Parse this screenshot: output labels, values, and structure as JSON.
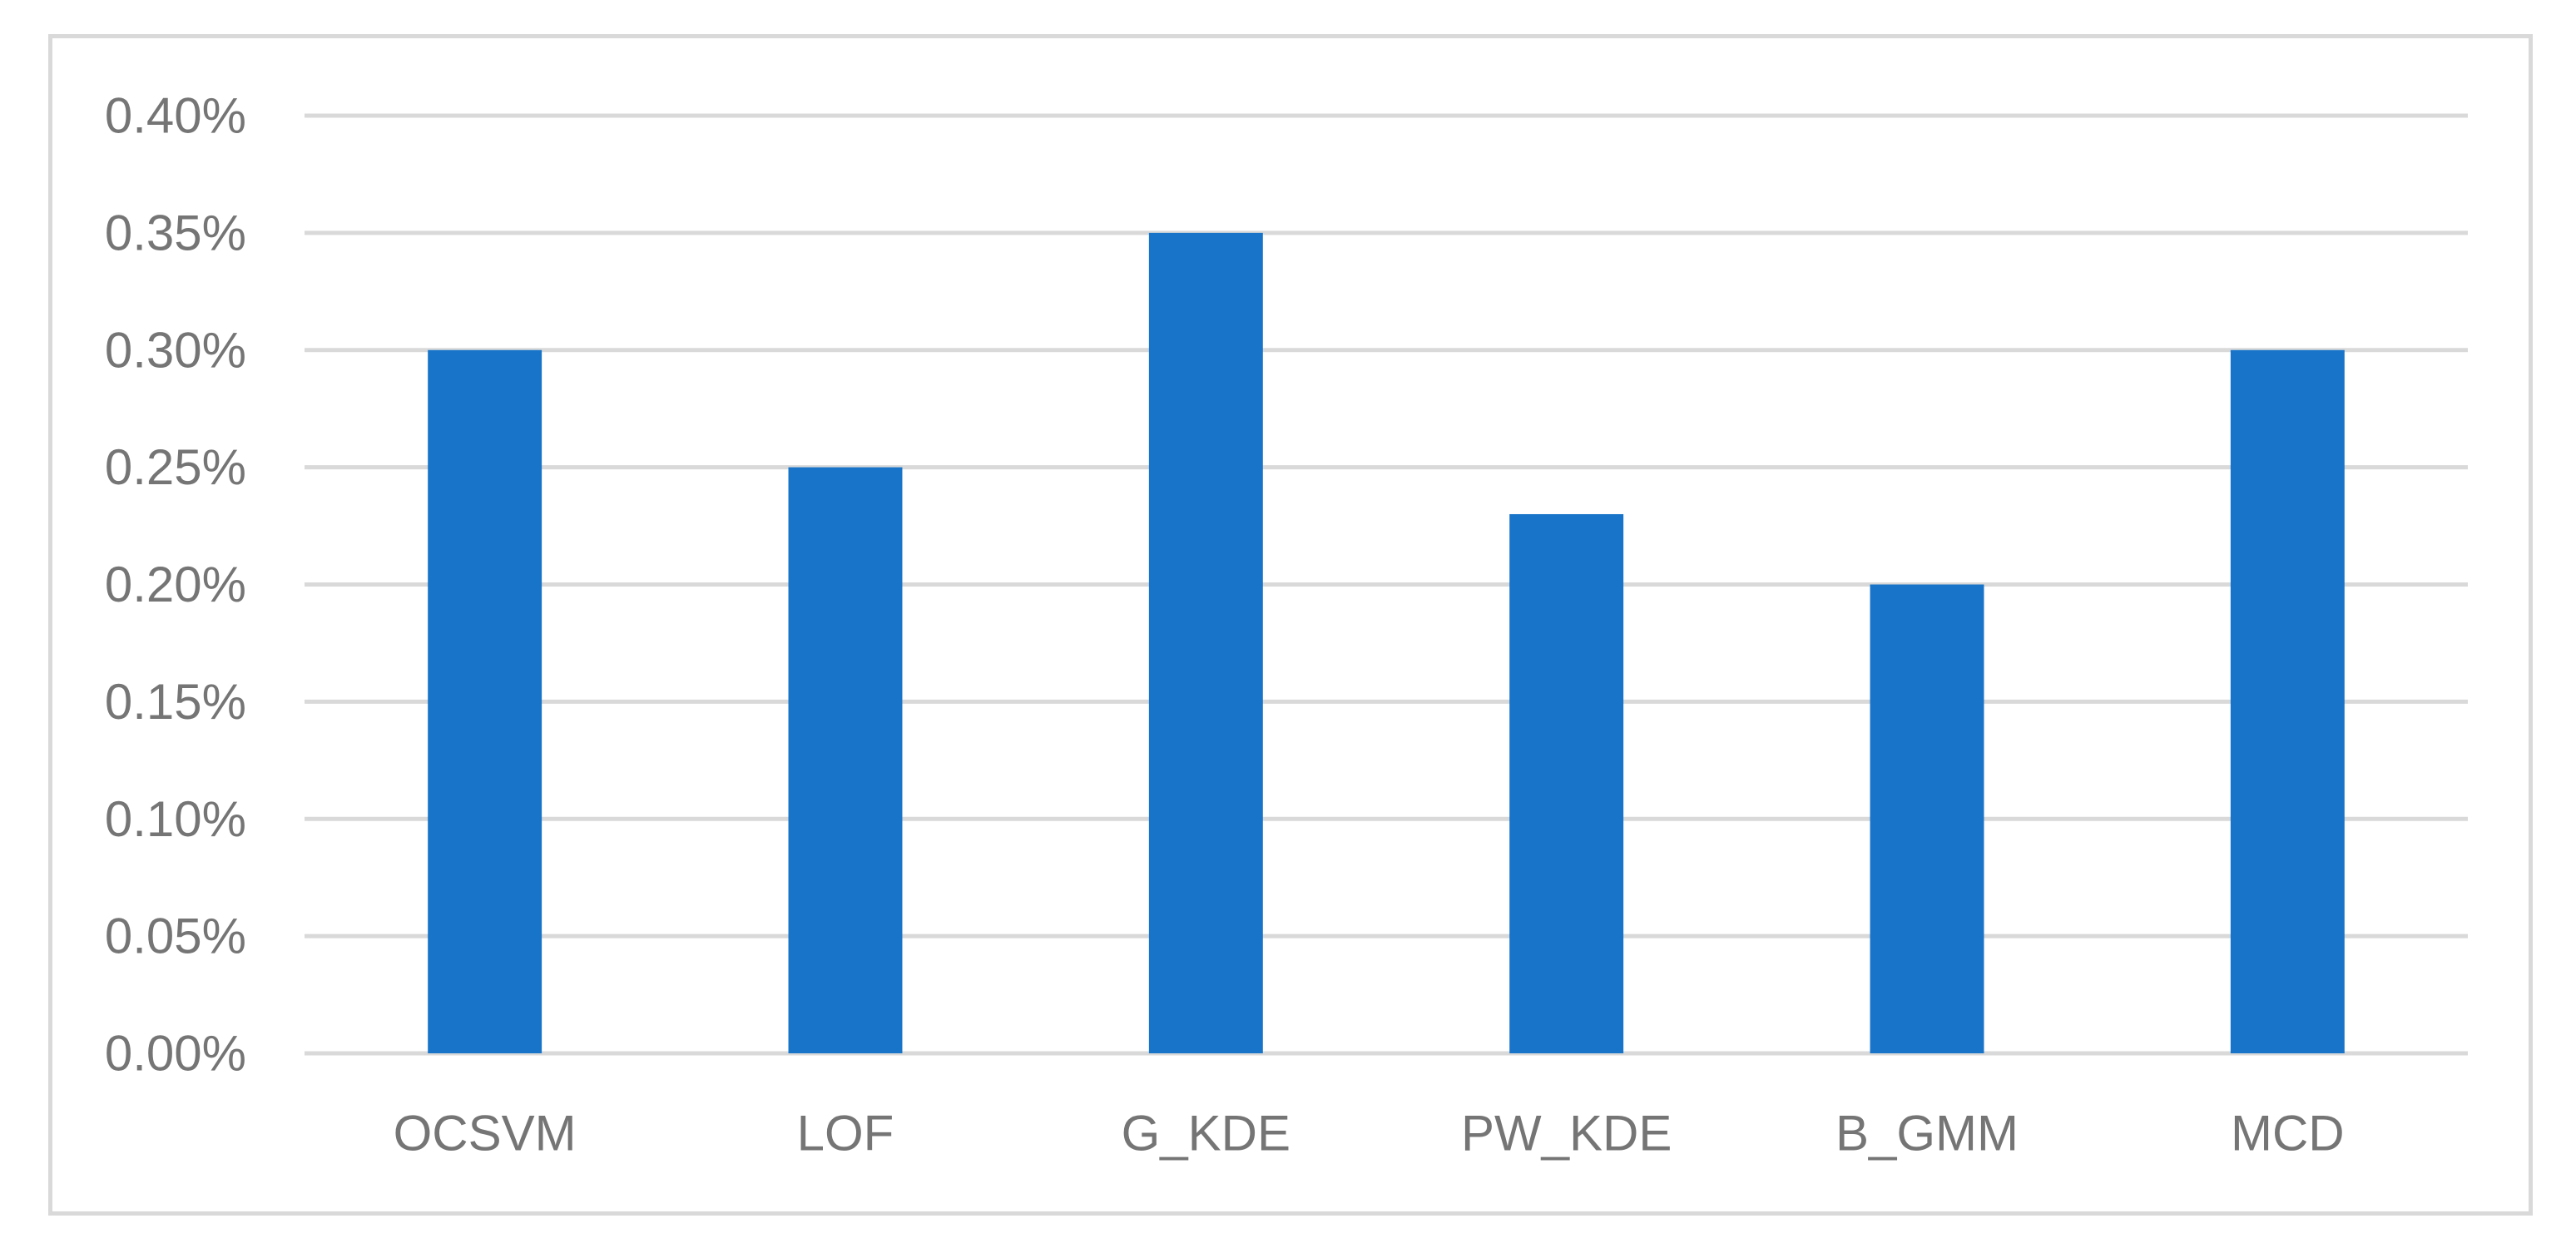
{
  "chart_data": {
    "type": "bar",
    "title": "",
    "xlabel": "",
    "ylabel": "",
    "categories": [
      "OCSVM",
      "LOF",
      "G_KDE",
      "PW_KDE",
      "B_GMM",
      "MCD"
    ],
    "values": [
      0.3,
      0.25,
      0.35,
      0.23,
      0.2,
      0.3
    ],
    "value_unit": "%",
    "ylim": [
      0,
      0.4
    ],
    "yticks": [
      0.0,
      0.05,
      0.1,
      0.15,
      0.2,
      0.25,
      0.3,
      0.35,
      0.4
    ],
    "ytick_labels": [
      "0.00%",
      "0.05%",
      "0.10%",
      "0.15%",
      "0.20%",
      "0.25%",
      "0.30%",
      "0.35%",
      "0.40%"
    ],
    "grid": true,
    "legend": "none",
    "colors": {
      "bar": "#1874c8",
      "gridline": "#d9d9d9",
      "tick_text": "#757575",
      "frame": "#d9d9d9"
    }
  }
}
